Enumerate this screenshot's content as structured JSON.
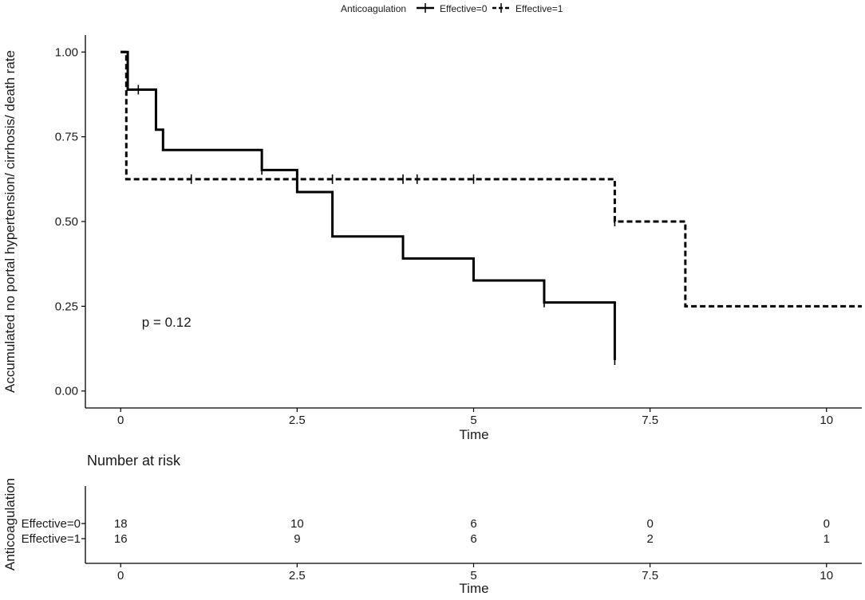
{
  "chart_data": [
    {
      "type": "line",
      "subtype": "kaplan-meier-step",
      "legend": {
        "title": "Anticoagulation",
        "placement": "top-center",
        "entries": [
          "Effective=0",
          "Effective=1"
        ]
      },
      "xlabel": "Time",
      "ylabel": "Accumulated no portal hypertension/ cirrhosis/ death rate",
      "xlim": [
        -0.5,
        10.5
      ],
      "ylim": [
        -0.05,
        1.05
      ],
      "x_ticks": [
        0,
        2.5,
        5,
        7.5,
        10
      ],
      "x_tick_labels": [
        "0",
        "2.5",
        "5",
        "7.5",
        "10"
      ],
      "y_ticks": [
        0,
        0.25,
        0.5,
        0.75,
        1.0
      ],
      "y_tick_labels": [
        "0.00",
        "0.25",
        "0.50",
        "0.75",
        "1.00"
      ],
      "grid": false,
      "annotation": "p = 0.12",
      "annotation_pos": {
        "x": 0.3,
        "y": 0.19
      },
      "series": [
        {
          "name": "Effective=0",
          "line_style": "solid",
          "steps": [
            {
              "x": 0,
              "y": 1.0
            },
            {
              "x": 0.1,
              "y": 0.889
            },
            {
              "x": 0.5,
              "y": 0.771
            },
            {
              "x": 0.6,
              "y": 0.711
            },
            {
              "x": 2.0,
              "y": 0.652
            },
            {
              "x": 2.5,
              "y": 0.587
            },
            {
              "x": 3.0,
              "y": 0.456
            },
            {
              "x": 4.0,
              "y": 0.391
            },
            {
              "x": 5.0,
              "y": 0.326
            },
            {
              "x": 6.0,
              "y": 0.261
            },
            {
              "x": 7.0,
              "y": 0.091
            }
          ],
          "end_x": 7.0,
          "censor_points": [
            {
              "x": 0.25,
              "y": 0.889
            },
            {
              "x": 2.0,
              "y": 0.652
            },
            {
              "x": 6.0,
              "y": 0.261
            },
            {
              "x": 7.0,
              "y": 0.091
            }
          ]
        },
        {
          "name": "Effective=1",
          "line_style": "dashed",
          "steps": [
            {
              "x": 0,
              "y": 1.0
            },
            {
              "x": 0.08,
              "y": 0.625
            },
            {
              "x": 7.0,
              "y": 0.5
            },
            {
              "x": 8.0,
              "y": 0.25
            }
          ],
          "end_x": 10.5,
          "censor_points": [
            {
              "x": 1.0,
              "y": 0.625
            },
            {
              "x": 3.0,
              "y": 0.625
            },
            {
              "x": 4.0,
              "y": 0.625
            },
            {
              "x": 4.2,
              "y": 0.625
            },
            {
              "x": 5.0,
              "y": 0.625
            },
            {
              "x": 7.0,
              "y": 0.5
            }
          ]
        }
      ]
    },
    {
      "type": "table",
      "title": "Number at risk",
      "row_header_title": "Anticoagulation",
      "xlabel": "Time",
      "x_ticks": [
        0,
        2.5,
        5,
        7.5,
        10
      ],
      "x_tick_labels": [
        "0",
        "2.5",
        "5",
        "7.5",
        "10"
      ],
      "rows": [
        {
          "label": "Effective=0",
          "values": [
            "18",
            "10",
            "6",
            "0",
            "0"
          ]
        },
        {
          "label": "Effective=1",
          "values": [
            "16",
            "9",
            "6",
            "2",
            "1"
          ]
        }
      ]
    }
  ]
}
